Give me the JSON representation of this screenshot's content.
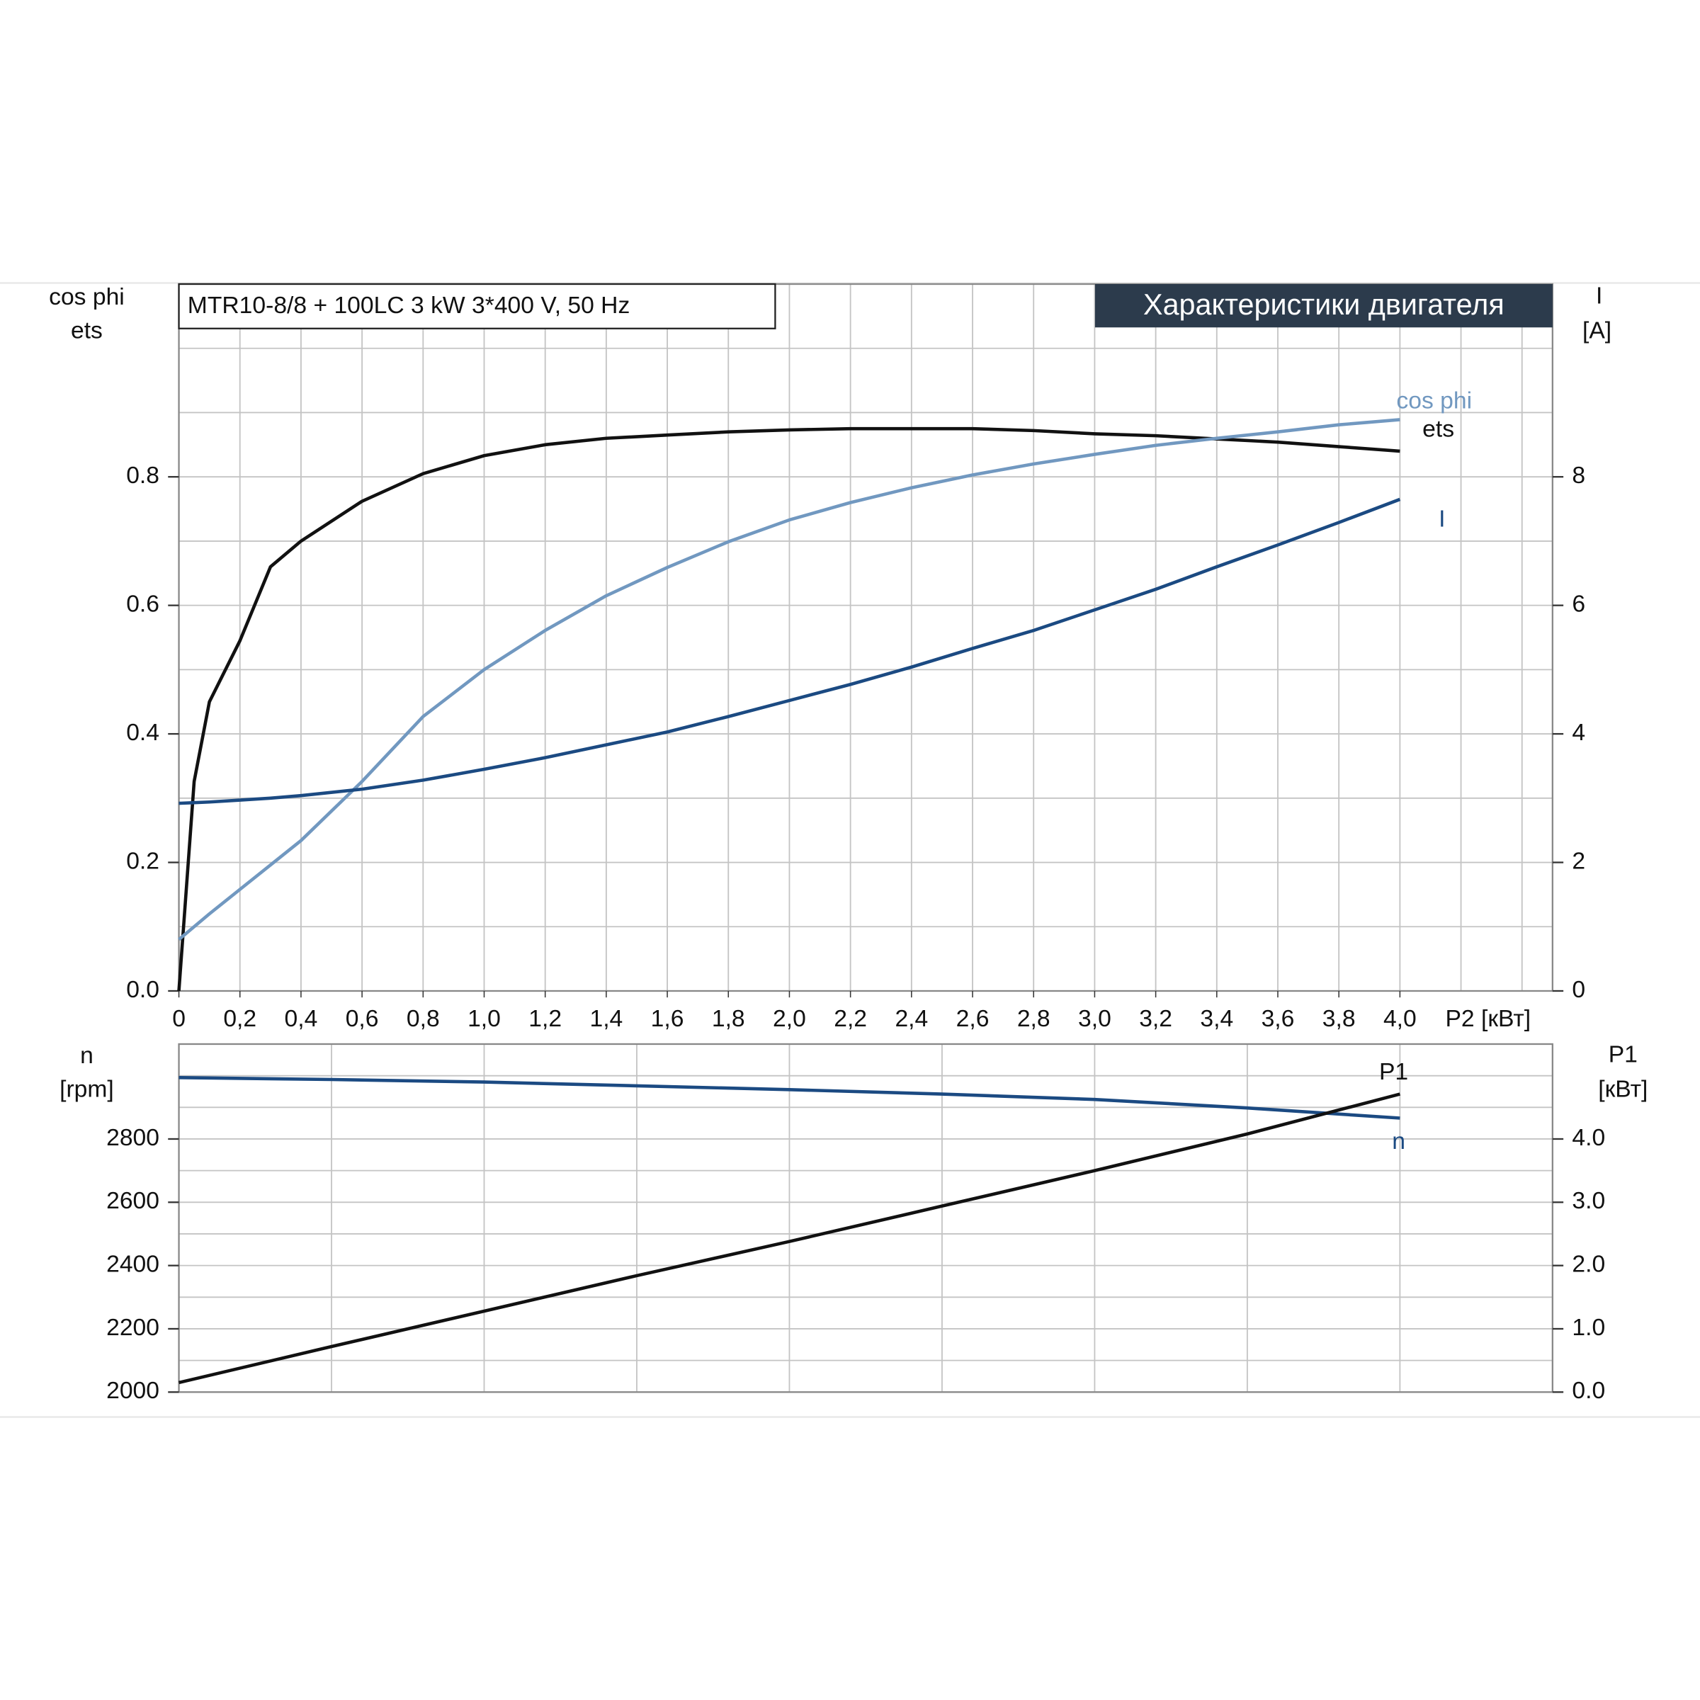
{
  "chart_data": [
    {
      "type": "line",
      "title": "MTR10-8/8 + 100LC  3 kW  3*400 V, 50 Hz",
      "subtitle": "Характеристики двигателя",
      "x_label": "P2 [кВт]",
      "y_labels": [
        "cos phi",
        "ets"
      ],
      "y2_labels": [
        "I",
        "[A]"
      ],
      "xlim": [
        0,
        4.5
      ],
      "ylim": [
        0,
        1.1
      ],
      "y2lim": [
        0,
        11
      ],
      "xticks": [
        0,
        {
          "value": 0.2,
          "label": "0,2"
        },
        {
          "value": 0.4,
          "label": "0,4"
        },
        {
          "value": 0.6,
          "label": "0,6"
        },
        {
          "value": 0.8,
          "label": "0,8"
        },
        {
          "value": 1.0,
          "label": "1,0"
        },
        {
          "value": 1.2,
          "label": "1,2"
        },
        {
          "value": 1.4,
          "label": "1,4"
        },
        {
          "value": 1.6,
          "label": "1,6"
        },
        {
          "value": 1.8,
          "label": "1,8"
        },
        {
          "value": 2.0,
          "label": "2,0"
        },
        {
          "value": 2.2,
          "label": "2,2"
        },
        {
          "value": 2.4,
          "label": "2,4"
        },
        {
          "value": 2.6,
          "label": "2,6"
        },
        {
          "value": 2.8,
          "label": "2,8"
        },
        {
          "value": 3.0,
          "label": "3,0"
        },
        {
          "value": 3.2,
          "label": "3,2"
        },
        {
          "value": 3.4,
          "label": "3,4"
        },
        {
          "value": 3.6,
          "label": "3,6"
        },
        {
          "value": 3.8,
          "label": "3,8"
        },
        {
          "value": 4.0,
          "label": "4,0"
        }
      ],
      "yticks": [
        {
          "value": 0,
          "label": "0.0"
        },
        0.2,
        0.4,
        0.6,
        0.8
      ],
      "y2ticks": [
        0,
        2,
        4,
        6,
        8
      ],
      "x_gridlines": [
        0,
        0.2,
        0.4,
        0.6,
        0.8,
        1.0,
        1.2,
        1.4,
        1.6,
        1.8,
        2.0,
        2.2,
        2.4,
        2.6,
        2.8,
        3.0,
        3.2,
        3.4,
        3.6,
        3.8,
        4.0,
        4.2,
        4.4
      ],
      "y_gridlines": [
        0,
        0.1,
        0.2,
        0.3,
        0.4,
        0.5,
        0.6,
        0.7,
        0.8,
        0.9,
        1.0
      ],
      "grid": true,
      "x": [
        0,
        0.05,
        0.1,
        0.2,
        0.3,
        0.4,
        0.6,
        0.8,
        1.0,
        1.2,
        1.4,
        1.6,
        1.8,
        2.0,
        2.2,
        2.4,
        2.6,
        2.8,
        3.0,
        3.2,
        3.4,
        3.6,
        3.8,
        4.0
      ],
      "series": [
        {
          "name": "ets",
          "color": "#111111",
          "values": [
            0,
            0.326,
            0.45,
            0.545,
            0.66,
            0.7,
            0.762,
            0.805,
            0.833,
            0.85,
            0.86,
            0.865,
            0.87,
            0.873,
            0.875,
            0.875,
            0.875,
            0.872,
            0.867,
            0.864,
            0.859,
            0.854,
            0.847,
            0.84
          ]
        },
        {
          "name": "cos phi",
          "color": "#7198c0",
          "values": [
            0.08,
            0.1,
            0.12,
            0.158,
            0.196,
            0.234,
            0.326,
            0.427,
            0.5,
            0.561,
            0.615,
            0.659,
            0.699,
            0.733,
            0.76,
            0.783,
            0.803,
            0.82,
            0.835,
            0.849,
            0.86,
            0.87,
            0.881,
            0.889
          ]
        },
        {
          "name": "I",
          "color": "#1b4a82",
          "axis": "y2",
          "values": [
            2.92,
            2.93,
            2.94,
            2.97,
            3.0,
            3.04,
            3.14,
            3.28,
            3.45,
            3.63,
            3.83,
            4.03,
            4.27,
            4.52,
            4.77,
            5.04,
            5.33,
            5.61,
            5.93,
            6.25,
            6.6,
            6.94,
            7.29,
            7.65
          ]
        }
      ]
    },
    {
      "type": "line",
      "y_labels": [
        "n",
        "[rpm]"
      ],
      "y2_labels": [
        "P1",
        "[кВт]"
      ],
      "xlim": [
        0,
        4.5
      ],
      "ylim": [
        2000,
        3100
      ],
      "y2lim": [
        0,
        5.5
      ],
      "yticks": [
        2000,
        2200,
        2400,
        2600,
        2800
      ],
      "y2ticks": [
        {
          "value": 0,
          "label": "0.0"
        },
        {
          "value": 1,
          "label": "1.0"
        },
        {
          "value": 2,
          "label": "2.0"
        },
        {
          "value": 3,
          "label": "3.0"
        },
        {
          "value": 4,
          "label": "4.0"
        }
      ],
      "x_gridlines": [
        0,
        0.5,
        1.0,
        1.5,
        2.0,
        2.5,
        3.0,
        3.5,
        4.0
      ],
      "y_gridlines": [
        2000,
        2100,
        2200,
        2300,
        2400,
        2500,
        2600,
        2700,
        2800,
        2900,
        3000
      ],
      "grid": true,
      "x": [
        0,
        0.5,
        1.0,
        1.5,
        2.0,
        2.5,
        3.0,
        3.5,
        4.0
      ],
      "series": [
        {
          "name": "n",
          "color": "#1b4a82",
          "values": [
            2994,
            2988,
            2980,
            2968,
            2956,
            2942,
            2925,
            2898,
            2866
          ]
        },
        {
          "name": "P1",
          "color": "#111111",
          "axis": "y2",
          "values": [
            0.15,
            0.72,
            1.28,
            1.84,
            2.38,
            2.94,
            3.5,
            4.08,
            4.71
          ]
        }
      ]
    }
  ]
}
